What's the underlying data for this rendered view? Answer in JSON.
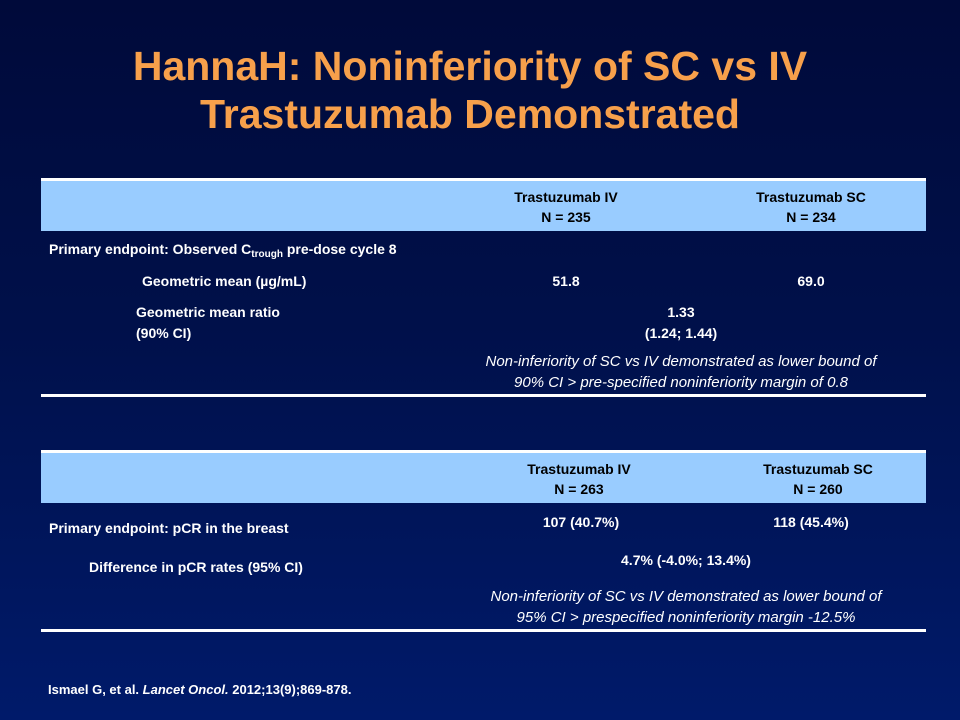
{
  "title": {
    "line1": "HannaH: Noninferiority of SC vs IV",
    "line2": "Trastuzumab Demonstrated"
  },
  "table1": {
    "col_iv": {
      "name": "Trastuzumab  IV",
      "n": "N = 235"
    },
    "col_sc": {
      "name": "Trastuzumab  SC",
      "n": "N = 234"
    },
    "endpoint": {
      "prefix": "Primary  endpoint:  Observed  C",
      "subscript": "trough",
      "suffix": " pre-dose  cycle  8"
    },
    "geo_mean": {
      "label": "Geometric  mean  (µg/mL)",
      "iv": "51.8",
      "sc": "69.0"
    },
    "ratio": {
      "label1": "Geometric  mean  ratio",
      "label2": "(90% CI)",
      "value1": "1.33",
      "value2": "(1.24;  1.44)"
    },
    "note": {
      "line1": "Non-inferiority  of  SC vs IV demonstrated  as lower bound  of",
      "line2": "90%  CI  >  pre-specified  noninferiority  margin  of  0.8"
    }
  },
  "table2": {
    "col_iv": {
      "name": "Trastuzumab  IV",
      "n": "N = 263"
    },
    "col_sc": {
      "name": "Trastuzumab  SC",
      "n": "N = 260"
    },
    "endpoint": {
      "label": "Primary  endpoint:  pCR  in  the  breast",
      "iv": "107  (40.7%)",
      "sc": "118  (45.4%)"
    },
    "difference": {
      "label": "Difference  in  pCR  rates  (95%  CI)",
      "value": "4.7%  (-4.0%;  13.4%)"
    },
    "note": {
      "line1": "Non-inferiority  of  SC vs IV demonstrated  as lower bound  of",
      "line2": "95%  CI  >  prespecified  noninferiority  margin  -12.5%"
    }
  },
  "citation": {
    "authors": "Ismael G, et al. ",
    "journal": "Lancet Oncol.",
    "details": " 2012;13(9);869-878."
  }
}
